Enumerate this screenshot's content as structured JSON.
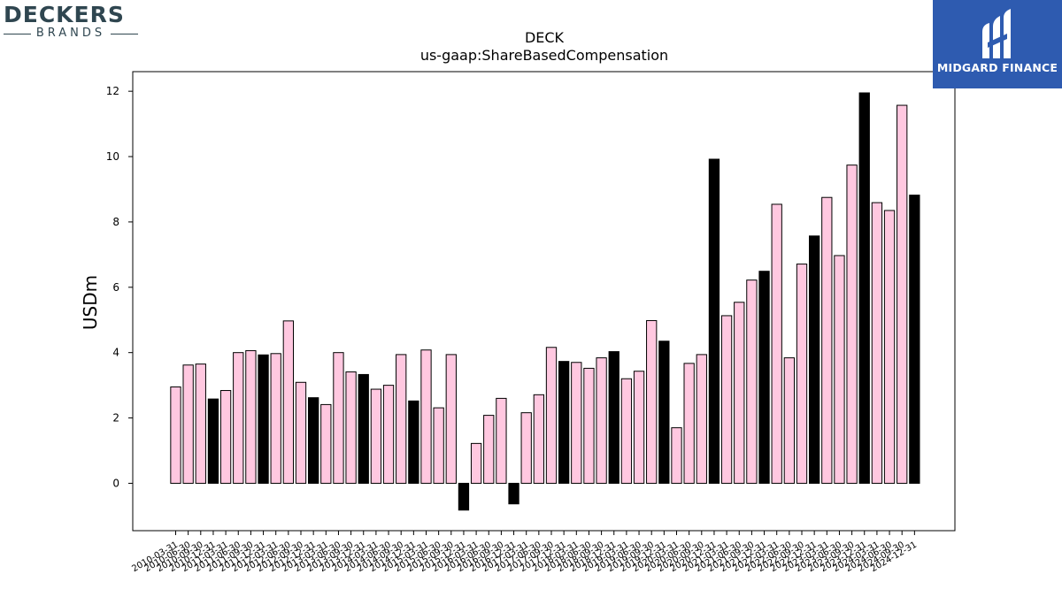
{
  "logos": {
    "left": {
      "name": "DECKERS",
      "sub": "BRANDS"
    },
    "right": {
      "name": "MIDGARD FINANCE"
    }
  },
  "colors": {
    "bar_pink": "#ffc8e0",
    "bar_black": "#000000",
    "axis": "#000000",
    "logo_left": "#2f4650",
    "logo_right_bg": "#2e5bb0"
  },
  "chart_data": {
    "type": "bar",
    "title": "DECK",
    "subtitle": "us-gaap:ShareBasedCompensation",
    "xlabel": "",
    "ylabel": "USDm",
    "ylim": [
      -1.45,
      12.6
    ],
    "yticks": [
      0,
      2,
      4,
      6,
      8,
      10,
      12
    ],
    "grid": false,
    "categories": [
      "2010-03-31",
      "2010-06-30",
      "2010-09-30",
      "2010-12-31",
      "2011-03-31",
      "2011-06-30",
      "2011-09-30",
      "2011-12-31",
      "2012-03-31",
      "2012-06-30",
      "2012-09-30",
      "2012-12-31",
      "2013-03-31",
      "2013-06-30",
      "2013-09-30",
      "2013-12-31",
      "2014-03-31",
      "2014-06-30",
      "2014-09-30",
      "2014-12-31",
      "2015-03-31",
      "2015-06-30",
      "2015-09-30",
      "2015-12-31",
      "2016-03-31",
      "2016-06-30",
      "2016-09-30",
      "2016-12-31",
      "2017-03-31",
      "2017-06-30",
      "2017-09-30",
      "2017-12-31",
      "2018-03-31",
      "2018-06-30",
      "2018-09-30",
      "2018-12-31",
      "2019-03-31",
      "2019-06-30",
      "2019-09-30",
      "2019-12-31",
      "2020-03-31",
      "2020-06-30",
      "2020-09-30",
      "2020-12-31",
      "2021-03-31",
      "2021-06-30",
      "2021-09-30",
      "2021-12-31",
      "2022-03-31",
      "2022-06-30",
      "2022-09-30",
      "2022-12-31",
      "2023-03-31",
      "2023-06-30",
      "2023-09-30",
      "2023-12-31",
      "2024-03-31",
      "2024-06-30",
      "2024-09-30",
      "2024-12-31"
    ],
    "values": [
      2.95,
      3.62,
      3.65,
      2.58,
      2.84,
      4.0,
      4.06,
      3.93,
      3.97,
      4.97,
      3.09,
      2.62,
      2.41,
      4.0,
      3.41,
      3.33,
      2.88,
      3.0,
      3.94,
      2.52,
      4.08,
      2.31,
      3.94,
      -0.82,
      1.22,
      2.08,
      2.6,
      -0.63,
      2.16,
      2.71,
      4.16,
      3.73,
      3.7,
      3.52,
      3.84,
      4.03,
      3.2,
      3.43,
      4.98,
      4.35,
      1.7,
      3.67,
      3.94,
      9.92,
      5.13,
      5.54,
      6.22,
      6.49,
      8.54,
      3.84,
      6.71,
      7.57,
      8.75,
      6.97,
      9.74,
      11.95,
      8.59,
      8.35,
      11.57,
      8.82
    ]
  }
}
